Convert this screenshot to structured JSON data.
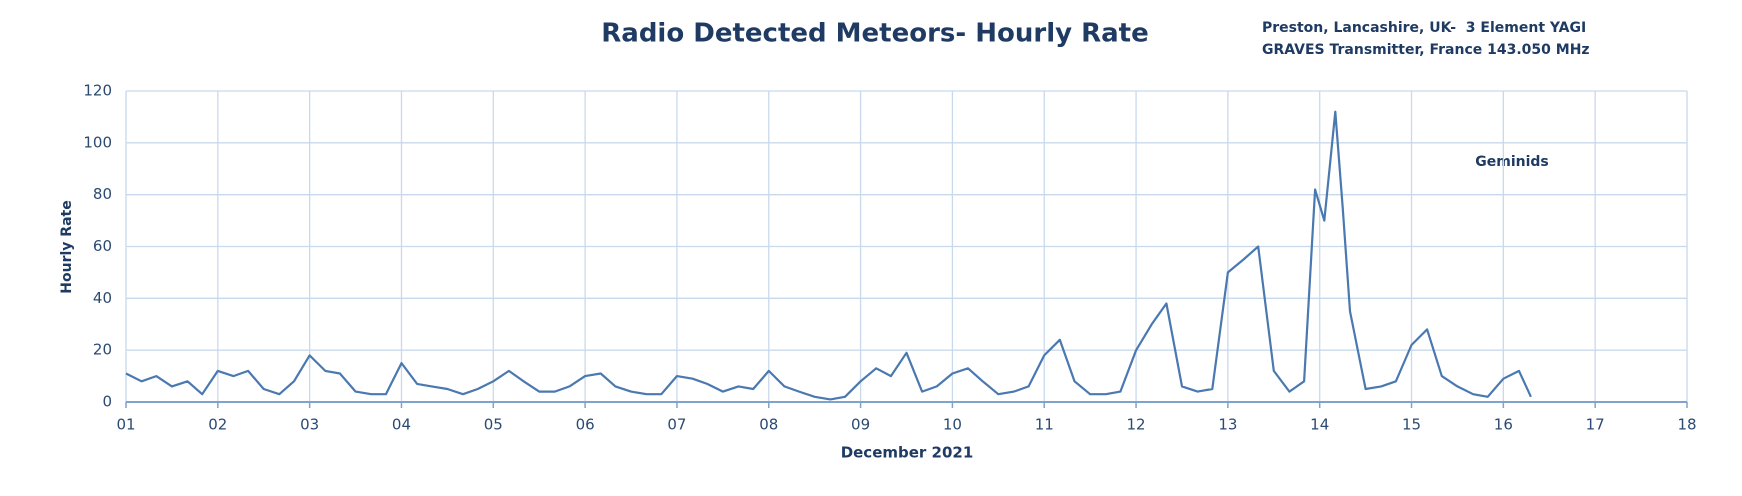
{
  "chart_data": {
    "type": "line",
    "title": "Radio Detected Meteors- Hourly Rate",
    "subtitle": [
      "Preston, Lancashire, UK-  3 Element YAGI",
      "GRAVES Transmitter, France 143.050 MHz"
    ],
    "annotation": "Geminids",
    "x_label": "December 2021",
    "y_label": "Hourly Rate",
    "xlim": [
      1,
      18
    ],
    "xticks": [
      {
        "value": 1,
        "label": "01"
      },
      {
        "value": 2,
        "label": "02"
      },
      {
        "value": 3,
        "label": "03"
      },
      {
        "value": 4,
        "label": "04"
      },
      {
        "value": 5,
        "label": "05"
      },
      {
        "value": 6,
        "label": "06"
      },
      {
        "value": 7,
        "label": "07"
      },
      {
        "value": 8,
        "label": "08"
      },
      {
        "value": 9,
        "label": "09"
      },
      {
        "value": 10,
        "label": "10"
      },
      {
        "value": 11,
        "label": "11"
      },
      {
        "value": 12,
        "label": "12"
      },
      {
        "value": 13,
        "label": "13"
      },
      {
        "value": 14,
        "label": "14"
      },
      {
        "value": 15,
        "label": "15"
      },
      {
        "value": 16,
        "label": "16"
      },
      {
        "value": 17,
        "label": "17"
      },
      {
        "value": 18,
        "label": "18"
      }
    ],
    "ylim": [
      0,
      120
    ],
    "yticks": [
      0,
      20,
      40,
      60,
      80,
      100,
      120
    ],
    "grid": true,
    "series": [
      {
        "color": "#4a78b0",
        "x": [
          1,
          1.17,
          1.33,
          1.5,
          1.67,
          1.83,
          2,
          2.17,
          2.33,
          2.5,
          2.67,
          2.83,
          3,
          3.17,
          3.33,
          3.5,
          3.67,
          3.83,
          4,
          4.17,
          4.33,
          4.5,
          4.67,
          4.83,
          5,
          5.17,
          5.33,
          5.5,
          5.67,
          5.83,
          6,
          6.17,
          6.33,
          6.5,
          6.67,
          6.83,
          7,
          7.17,
          7.33,
          7.5,
          7.67,
          7.83,
          8,
          8.17,
          8.33,
          8.5,
          8.67,
          8.83,
          9,
          9.17,
          9.33,
          9.5,
          9.67,
          9.83,
          10,
          10.17,
          10.33,
          10.5,
          10.67,
          10.83,
          11,
          11.17,
          11.33,
          11.5,
          11.67,
          11.83,
          12,
          12.17,
          12.33,
          12.5,
          12.67,
          12.83,
          13,
          13.17,
          13.33,
          13.5,
          13.67,
          13.83,
          13.95,
          14.05,
          14.17,
          14.25,
          14.33,
          14.5,
          14.67,
          14.83,
          15,
          15.17,
          15.33,
          15.5,
          15.67,
          15.83,
          16,
          16.17,
          16.3
        ],
        "values": [
          11,
          8,
          10,
          6,
          8,
          3,
          12,
          10,
          12,
          5,
          3,
          8,
          18,
          12,
          11,
          4,
          3,
          3,
          15,
          7,
          6,
          5,
          3,
          5,
          8,
          12,
          8,
          4,
          4,
          6,
          10,
          11,
          6,
          4,
          3,
          3,
          10,
          9,
          7,
          4,
          6,
          5,
          12,
          6,
          4,
          2,
          1,
          2,
          8,
          13,
          10,
          19,
          4,
          6,
          11,
          13,
          8,
          3,
          4,
          6,
          18,
          24,
          8,
          3,
          3,
          4,
          20,
          30,
          38,
          6,
          4,
          5,
          50,
          55,
          60,
          12,
          4,
          8,
          82,
          70,
          112,
          75,
          35,
          5,
          6,
          8,
          22,
          28,
          10,
          6,
          3,
          2,
          9,
          12,
          2
        ]
      }
    ]
  }
}
